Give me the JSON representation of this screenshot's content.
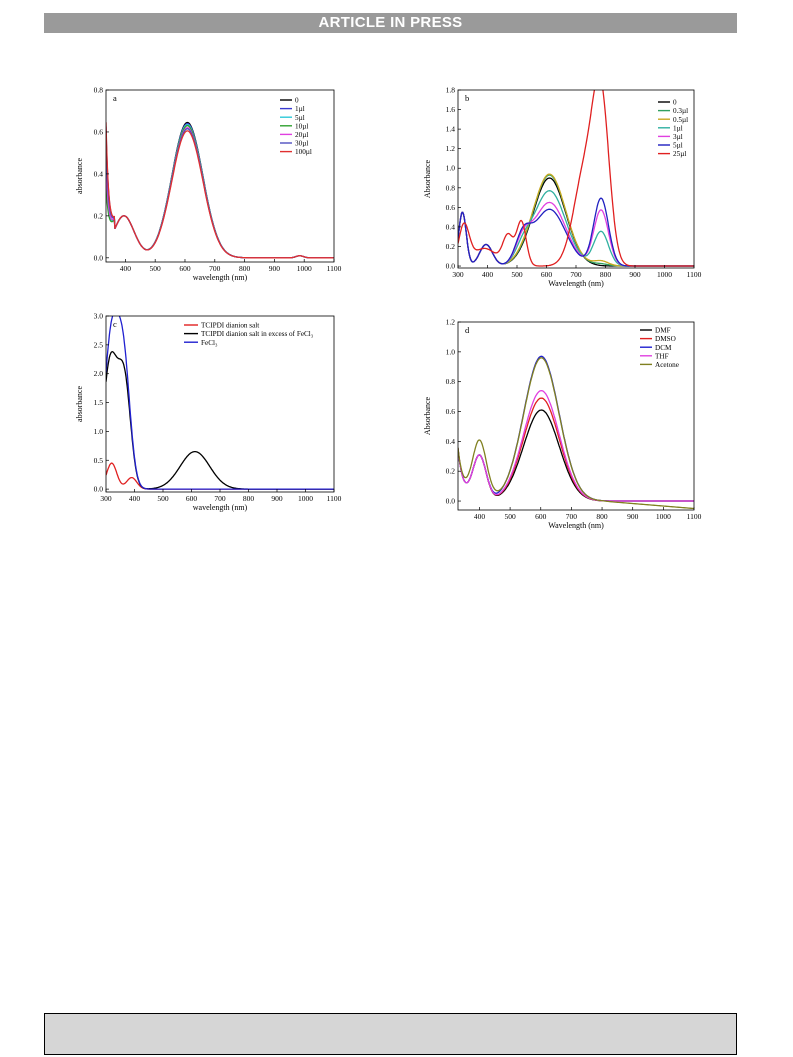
{
  "header": {
    "banner": "ARTICLE IN PRESS"
  },
  "chart_data": [
    {
      "type": "line",
      "panel_label": "a",
      "xlabel": "wavelength (nm)",
      "ylabel": "absorbance",
      "xlim": [
        335,
        1100
      ],
      "ylim": [
        -0.02,
        0.8
      ],
      "xticks": [
        400,
        500,
        600,
        700,
        800,
        900,
        1000,
        1100
      ],
      "yticks": [
        0.0,
        0.2,
        0.4,
        0.6,
        0.8
      ],
      "ytick_labels": [
        "0.0",
        "0.2",
        "0.4",
        "0.6",
        "0.8"
      ],
      "legend": "top-right",
      "series": [
        {
          "name": "0",
          "color": "#000000",
          "peak": 0.645,
          "start": 0.75
        },
        {
          "name": "1µl",
          "color": "#3a3ad0",
          "peak": 0.64,
          "start": 0.78
        },
        {
          "name": "5µl",
          "color": "#2ec8d8",
          "peak": 0.635,
          "start": 0.55
        },
        {
          "name": "10µl",
          "color": "#30a030",
          "peak": 0.63,
          "start": 0.5
        },
        {
          "name": "20µl",
          "color": "#e040e0",
          "peak": 0.62,
          "start": 0.6
        },
        {
          "name": "30µl",
          "color": "#5050c0",
          "peak": 0.615,
          "start": 0.7
        },
        {
          "name": "100µl",
          "color": "#e03030",
          "peak": 0.605,
          "start": 0.8
        }
      ]
    },
    {
      "type": "line",
      "panel_label": "b",
      "xlabel": "Wavelength (nm)",
      "ylabel": "Absorbance",
      "xlim": [
        300,
        1100
      ],
      "ylim": [
        -0.02,
        1.8
      ],
      "xticks": [
        300,
        400,
        500,
        600,
        700,
        800,
        900,
        1000,
        1100
      ],
      "yticks": [
        0.0,
        0.2,
        0.4,
        0.6,
        0.8,
        1.0,
        1.2,
        1.4,
        1.6,
        1.8
      ],
      "ytick_labels": [
        "0.0",
        "0.2",
        "0.4",
        "0.6",
        "0.8",
        "1.0",
        "1.2",
        "1.4",
        "1.6",
        "1.8"
      ],
      "legend": "top-right",
      "series": [
        {
          "name": "0",
          "color": "#000000",
          "peak": 0.9,
          "p780": 0.0
        },
        {
          "name": "0.3µl",
          "color": "#30a060",
          "peak": 0.93,
          "p780": 0.02
        },
        {
          "name": "0.5µl",
          "color": "#c8a820",
          "peak": 0.94,
          "p780": 0.05
        },
        {
          "name": "1µl",
          "color": "#30b0a0",
          "peak": 0.77,
          "p780": 0.35
        },
        {
          "name": "3µl",
          "color": "#e040e0",
          "peak": 0.65,
          "p780": 0.57
        },
        {
          "name": "5µl",
          "color": "#2020c0",
          "peak": 0.58,
          "p780": 0.69
        },
        {
          "name": "25µl",
          "color": "#e02020",
          "peak": 0.0,
          "p780": 1.58
        }
      ]
    },
    {
      "type": "line",
      "panel_label": "c",
      "xlabel": "wavelength (nm)",
      "ylabel": "absorbance",
      "xlim": [
        300,
        1100
      ],
      "ylim": [
        -0.05,
        3.0
      ],
      "xticks": [
        300,
        400,
        500,
        600,
        700,
        800,
        900,
        1000,
        1100
      ],
      "yticks": [
        0.0,
        0.5,
        1.0,
        1.5,
        2.0,
        2.5,
        3.0
      ],
      "ytick_labels": [
        "0.0",
        "0.5",
        "1.0",
        "1.5",
        "2.0",
        "2.5",
        "3.0"
      ],
      "legend": "top-right",
      "series": [
        {
          "name": "TCIPDI dianion salt",
          "color": "#e02020"
        },
        {
          "name": "TCIPDI dianion salt in excess of FeCl₃",
          "color": "#000000"
        },
        {
          "name": "FeCl₃",
          "color": "#2020d0"
        }
      ]
    },
    {
      "type": "line",
      "panel_label": "d",
      "xlabel": "Wavelength (nm)",
      "ylabel": "Absorbance",
      "xlim": [
        330,
        1100
      ],
      "ylim": [
        -0.06,
        1.2
      ],
      "xticks": [
        400,
        500,
        600,
        700,
        800,
        900,
        1000,
        1100
      ],
      "yticks": [
        0.0,
        0.2,
        0.4,
        0.6,
        0.8,
        1.0,
        1.2
      ],
      "ytick_labels": [
        "0.0",
        "0.2",
        "0.4",
        "0.6",
        "0.8",
        "1.0",
        "1.2"
      ],
      "legend": "top-right",
      "series": [
        {
          "name": "DMF",
          "color": "#000000",
          "peak": 0.61
        },
        {
          "name": "DMSO",
          "color": "#e02020",
          "peak": 0.69
        },
        {
          "name": "DCM",
          "color": "#2020d0",
          "peak": 0.97
        },
        {
          "name": "THF",
          "color": "#e040e0",
          "peak": 0.74
        },
        {
          "name": "Acetone",
          "color": "#808020",
          "peak": 0.96
        }
      ]
    }
  ]
}
